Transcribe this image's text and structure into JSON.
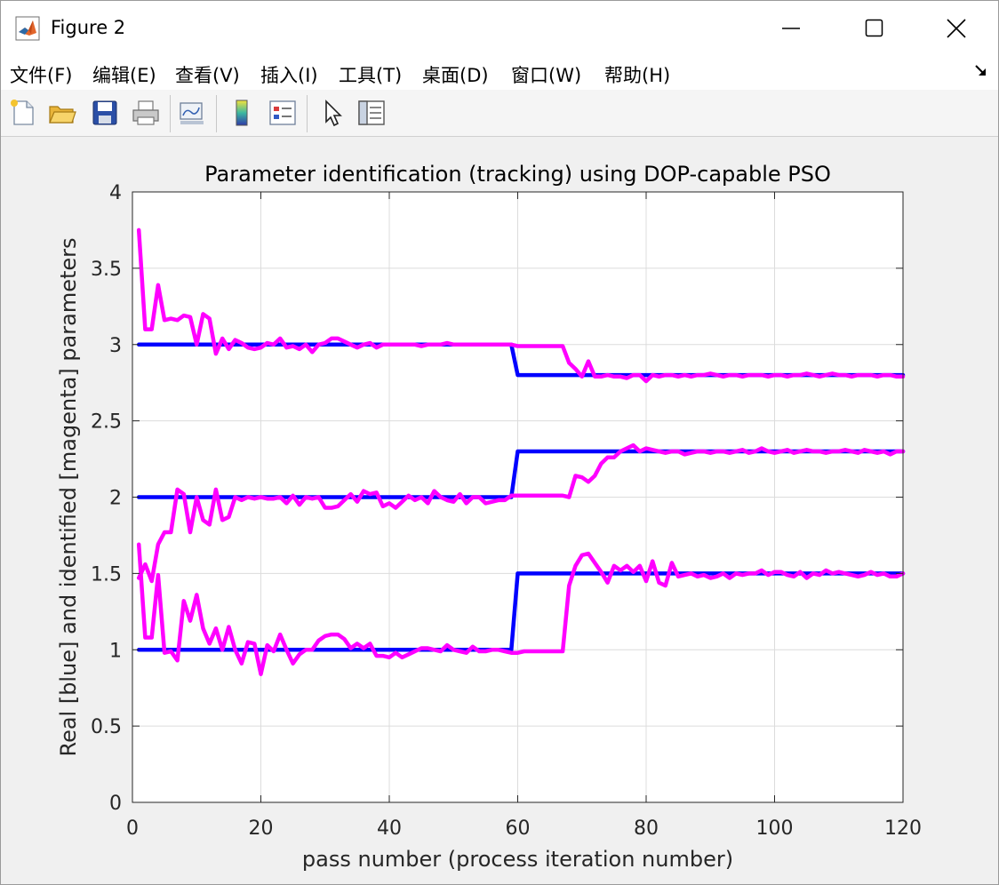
{
  "window": {
    "title": "Figure 2",
    "minimize_icon": "minimize-icon",
    "maximize_icon": "maximize-icon",
    "close_icon": "close-icon"
  },
  "menu": {
    "items": [
      "文件(F)",
      "编辑(E)",
      "查看(V)",
      "插入(I)",
      "工具(T)",
      "桌面(D)",
      "窗口(W)",
      "帮助(H)"
    ]
  },
  "toolbar": {
    "buttons": [
      {
        "icon": "new-figure-icon"
      },
      {
        "icon": "open-file-icon"
      },
      {
        "icon": "save-icon"
      },
      {
        "icon": "print-icon"
      },
      {
        "icon": "link-plot-icon"
      },
      {
        "icon": "colorbar-icon"
      },
      {
        "icon": "legend-icon"
      },
      {
        "icon": "pointer-icon"
      },
      {
        "icon": "property-inspector-icon"
      }
    ]
  },
  "colors": {
    "real": "#0000ff",
    "identified": "#ff00ff",
    "grid": "#dcdcdc"
  },
  "chart_data": {
    "type": "line",
    "title": "Parameter identification (tracking) using DOP-capable PSO",
    "xlabel": "pass number (process iteration number)",
    "ylabel": "Real [blue] and identified [magenta] parameters",
    "xlim": [
      0,
      120
    ],
    "ylim": [
      0,
      4
    ],
    "xticks": [
      0,
      20,
      40,
      60,
      80,
      100,
      120
    ],
    "yticks": [
      0,
      0.5,
      1,
      1.5,
      2,
      2.5,
      3,
      3.5,
      4
    ],
    "ytick_labels": [
      "0",
      "0.5",
      "1",
      "1.5",
      "2",
      "2.5",
      "3",
      "3.5",
      "4"
    ],
    "grid": true,
    "series": [
      {
        "role": "real",
        "color": "#0000ff",
        "x": [
          1,
          59,
          60,
          120
        ],
        "y": [
          3.0,
          3.0,
          2.8,
          2.8
        ]
      },
      {
        "role": "real",
        "color": "#0000ff",
        "x": [
          1,
          59,
          60,
          120
        ],
        "y": [
          2.0,
          2.0,
          2.3,
          2.3
        ]
      },
      {
        "role": "real",
        "color": "#0000ff",
        "x": [
          1,
          59,
          60,
          120
        ],
        "y": [
          1.0,
          1.0,
          1.5,
          1.5
        ]
      },
      {
        "role": "identified",
        "color": "#ff00ff",
        "x": [
          1,
          2,
          3,
          4,
          5,
          6,
          7,
          8,
          9,
          10,
          11,
          12,
          13,
          14,
          15,
          16,
          17,
          18,
          19,
          20,
          21,
          22,
          23,
          24,
          25,
          26,
          27,
          28,
          29,
          30,
          31,
          32,
          33,
          34,
          35,
          36,
          37,
          38,
          39,
          40,
          41,
          42,
          43,
          44,
          45,
          46,
          47,
          48,
          49,
          50,
          51,
          52,
          53,
          54,
          55,
          56,
          57,
          58,
          59,
          60,
          61,
          62,
          63,
          64,
          65,
          66,
          67,
          68,
          69,
          70,
          71,
          72,
          73,
          74,
          75,
          76,
          77,
          78,
          79,
          80,
          81,
          82,
          83,
          84,
          85,
          86,
          87,
          88,
          89,
          90,
          91,
          92,
          93,
          94,
          95,
          96,
          97,
          98,
          99,
          100,
          101,
          102,
          103,
          104,
          105,
          106,
          107,
          108,
          109,
          110,
          111,
          112,
          113,
          114,
          115,
          116,
          117,
          118,
          119,
          120
        ],
        "y": [
          3.75,
          3.1,
          3.1,
          3.39,
          3.16,
          3.17,
          3.16,
          3.19,
          3.18,
          3.0,
          3.2,
          3.17,
          2.94,
          3.04,
          2.97,
          3.03,
          3.01,
          2.98,
          2.97,
          2.98,
          3.01,
          3.0,
          3.04,
          2.98,
          2.99,
          2.97,
          3.0,
          2.95,
          3.0,
          3.01,
          3.04,
          3.04,
          3.02,
          3.0,
          2.98,
          3.0,
          3.01,
          2.98,
          3.0,
          3.0,
          3.0,
          3.0,
          3.0,
          3.0,
          2.99,
          3.0,
          3.0,
          3.0,
          3.01,
          3.0,
          3.0,
          3.0,
          3.0,
          3.0,
          3.0,
          3.0,
          3.0,
          3.0,
          3.0,
          2.99,
          2.99,
          2.99,
          2.99,
          2.99,
          2.99,
          2.99,
          2.99,
          2.88,
          2.84,
          2.79,
          2.89,
          2.79,
          2.79,
          2.8,
          2.79,
          2.79,
          2.78,
          2.8,
          2.8,
          2.76,
          2.8,
          2.79,
          2.8,
          2.8,
          2.79,
          2.8,
          2.79,
          2.8,
          2.8,
          2.81,
          2.8,
          2.79,
          2.8,
          2.8,
          2.79,
          2.8,
          2.8,
          2.8,
          2.79,
          2.8,
          2.8,
          2.79,
          2.8,
          2.8,
          2.81,
          2.8,
          2.79,
          2.8,
          2.81,
          2.8,
          2.8,
          2.79,
          2.8,
          2.8,
          2.8,
          2.79,
          2.8,
          2.8,
          2.79,
          2.79
        ]
      },
      {
        "role": "identified",
        "color": "#ff00ff",
        "x": [
          1,
          2,
          3,
          4,
          5,
          6,
          7,
          8,
          9,
          10,
          11,
          12,
          13,
          14,
          15,
          16,
          17,
          18,
          19,
          20,
          21,
          22,
          23,
          24,
          25,
          26,
          27,
          28,
          29,
          30,
          31,
          32,
          33,
          34,
          35,
          36,
          37,
          38,
          39,
          40,
          41,
          42,
          43,
          44,
          45,
          46,
          47,
          48,
          49,
          50,
          51,
          52,
          53,
          54,
          55,
          56,
          57,
          58,
          59,
          60,
          61,
          62,
          63,
          64,
          65,
          66,
          67,
          68,
          69,
          70,
          71,
          72,
          73,
          74,
          75,
          76,
          77,
          78,
          79,
          80,
          81,
          82,
          83,
          84,
          85,
          86,
          87,
          88,
          89,
          90,
          91,
          92,
          93,
          94,
          95,
          96,
          97,
          98,
          99,
          100,
          101,
          102,
          103,
          104,
          105,
          106,
          107,
          108,
          109,
          110,
          111,
          112,
          113,
          114,
          115,
          116,
          117,
          118,
          119,
          120
        ],
        "y": [
          1.47,
          1.56,
          1.45,
          1.69,
          1.77,
          1.77,
          2.05,
          2.02,
          1.77,
          2.0,
          1.85,
          1.82,
          2.05,
          1.85,
          1.87,
          2.0,
          1.98,
          2.0,
          1.99,
          2.0,
          1.99,
          1.99,
          2.0,
          1.96,
          2.01,
          1.95,
          2.0,
          1.99,
          2.0,
          1.93,
          1.93,
          1.94,
          1.98,
          2.02,
          1.97,
          2.04,
          2.02,
          2.03,
          1.94,
          1.96,
          1.93,
          1.97,
          2.01,
          1.98,
          2.0,
          1.96,
          2.04,
          2.0,
          1.98,
          1.97,
          2.02,
          1.96,
          2.0,
          2.0,
          1.96,
          1.97,
          1.98,
          1.98,
          2.01,
          2.01,
          2.01,
          2.01,
          2.01,
          2.01,
          2.01,
          2.01,
          2.01,
          2.0,
          2.14,
          2.13,
          2.1,
          2.14,
          2.22,
          2.26,
          2.26,
          2.3,
          2.32,
          2.34,
          2.3,
          2.32,
          2.31,
          2.3,
          2.29,
          2.3,
          2.3,
          2.28,
          2.29,
          2.3,
          2.3,
          2.29,
          2.3,
          2.3,
          2.29,
          2.3,
          2.31,
          2.29,
          2.3,
          2.32,
          2.3,
          2.29,
          2.3,
          2.31,
          2.29,
          2.3,
          2.31,
          2.3,
          2.3,
          2.29,
          2.3,
          2.3,
          2.31,
          2.3,
          2.29,
          2.31,
          2.3,
          2.29,
          2.3,
          2.28,
          2.3,
          2.3
        ]
      },
      {
        "role": "identified",
        "color": "#ff00ff",
        "x": [
          1,
          2,
          3,
          4,
          5,
          6,
          7,
          8,
          9,
          10,
          11,
          12,
          13,
          14,
          15,
          16,
          17,
          18,
          19,
          20,
          21,
          22,
          23,
          24,
          25,
          26,
          27,
          28,
          29,
          30,
          31,
          32,
          33,
          34,
          35,
          36,
          37,
          38,
          39,
          40,
          41,
          42,
          43,
          44,
          45,
          46,
          47,
          48,
          49,
          50,
          51,
          52,
          53,
          54,
          55,
          56,
          57,
          58,
          59,
          60,
          61,
          62,
          63,
          64,
          65,
          66,
          67,
          68,
          69,
          70,
          71,
          72,
          73,
          74,
          75,
          76,
          77,
          78,
          79,
          80,
          81,
          82,
          83,
          84,
          85,
          86,
          87,
          88,
          89,
          90,
          91,
          92,
          93,
          94,
          95,
          96,
          97,
          98,
          99,
          100,
          101,
          102,
          103,
          104,
          105,
          106,
          107,
          108,
          109,
          110,
          111,
          112,
          113,
          114,
          115,
          116,
          117,
          118,
          119,
          120
        ],
        "y": [
          1.69,
          1.08,
          1.08,
          1.49,
          0.98,
          0.99,
          0.93,
          1.32,
          1.19,
          1.36,
          1.14,
          1.04,
          1.14,
          1.0,
          1.15,
          1.0,
          0.91,
          1.05,
          1.04,
          0.84,
          1.03,
          0.99,
          1.1,
          1.0,
          0.91,
          0.97,
          1.0,
          1.0,
          1.06,
          1.09,
          1.1,
          1.1,
          1.07,
          1.01,
          1.04,
          1.01,
          1.04,
          0.96,
          0.96,
          0.95,
          0.98,
          0.95,
          0.97,
          0.99,
          1.01,
          1.01,
          1.0,
          0.99,
          1.03,
          1.0,
          0.99,
          0.98,
          1.02,
          0.99,
          0.99,
          1.0,
          1.0,
          0.99,
          0.98,
          0.98,
          0.99,
          0.99,
          0.99,
          0.99,
          0.99,
          0.99,
          0.99,
          1.42,
          1.55,
          1.62,
          1.63,
          1.57,
          1.51,
          1.44,
          1.55,
          1.52,
          1.55,
          1.51,
          1.55,
          1.45,
          1.58,
          1.44,
          1.42,
          1.57,
          1.48,
          1.49,
          1.5,
          1.48,
          1.49,
          1.47,
          1.48,
          1.5,
          1.47,
          1.5,
          1.49,
          1.5,
          1.5,
          1.52,
          1.49,
          1.51,
          1.51,
          1.49,
          1.48,
          1.51,
          1.47,
          1.5,
          1.49,
          1.52,
          1.5,
          1.51,
          1.5,
          1.49,
          1.48,
          1.49,
          1.51,
          1.49,
          1.5,
          1.48,
          1.48,
          1.5
        ]
      }
    ]
  }
}
